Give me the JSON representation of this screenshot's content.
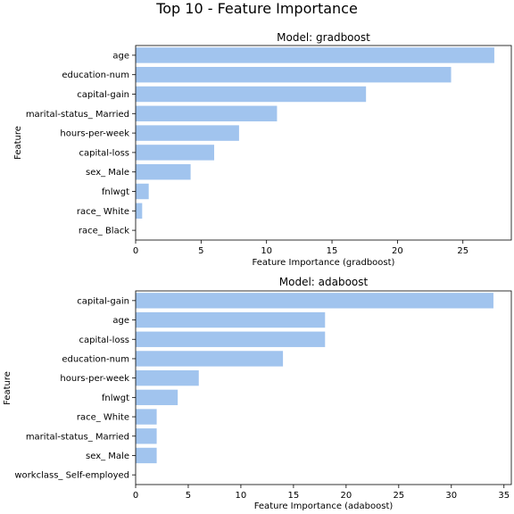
{
  "figure_title": "Top 10 - Feature Importance",
  "chart_data": [
    {
      "type": "bar",
      "orientation": "horizontal",
      "title": "Model: gradboost",
      "xlabel": "Feature Importance (gradboost)",
      "ylabel": "Feature",
      "categories": [
        "age",
        "education-num",
        "capital-gain",
        "marital-status_ Married",
        "hours-per-week",
        "capital-loss",
        "sex_ Male",
        "fnlwgt",
        "race_ White",
        "race_ Black"
      ],
      "values": [
        27.4,
        24.1,
        17.6,
        10.8,
        7.9,
        6.0,
        4.2,
        1.0,
        0.5,
        0.0
      ],
      "xlim": [
        0,
        28.7
      ],
      "xticks": [
        0,
        5,
        10,
        15,
        20,
        25
      ],
      "grid": false,
      "bar_color": "#a1c4ee"
    },
    {
      "type": "bar",
      "orientation": "horizontal",
      "title": "Model: adaboost",
      "xlabel": "Feature Importance (adaboost)",
      "ylabel": "Feature",
      "categories": [
        "capital-gain",
        "age",
        "capital-loss",
        "education-num",
        "hours-per-week",
        "fnlwgt",
        "race_ White",
        "marital-status_ Married",
        "sex_ Male",
        "workclass_ Self-employed"
      ],
      "values": [
        34.0,
        18.0,
        18.0,
        14.0,
        6.0,
        4.0,
        2.0,
        2.0,
        2.0,
        0.0
      ],
      "xlim": [
        0,
        35.7
      ],
      "xticks": [
        0,
        5,
        10,
        15,
        20,
        25,
        30,
        35
      ],
      "grid": false,
      "bar_color": "#a1c4ee"
    }
  ]
}
